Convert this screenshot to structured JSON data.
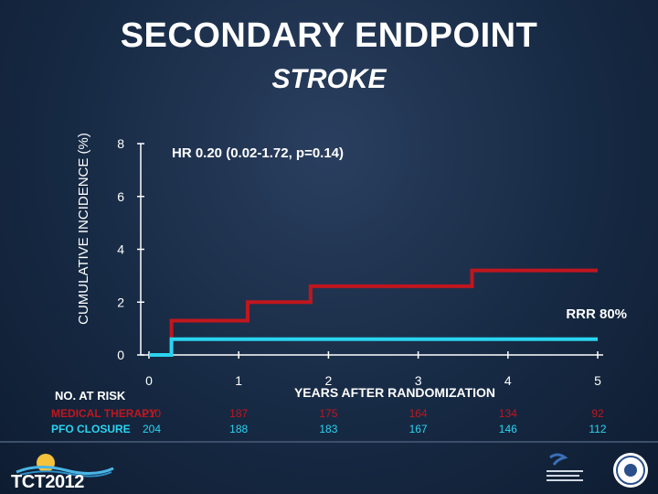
{
  "header": {
    "title": "SECONDARY ENDPOINT",
    "subtitle": "STROKE"
  },
  "chart_data": {
    "type": "line",
    "ylabel": "CUMULATIVE INCIDENCE (%)",
    "xlabel": "YEARS AFTER RANDOMIZATION",
    "xlim": [
      0,
      5
    ],
    "ylim": [
      0,
      8
    ],
    "x_ticks": [
      "0",
      "1",
      "2",
      "3",
      "4",
      "5"
    ],
    "y_ticks": [
      "0",
      "2",
      "4",
      "6",
      "8"
    ],
    "annotations": {
      "hr": "HR 0.20 (0.02-1.72, p=0.14)",
      "rrr": "RRR 80%"
    },
    "series": [
      {
        "name": "MEDICAL THERAPY",
        "color": "#c0161e",
        "steps": [
          [
            0,
            0
          ],
          [
            0.25,
            0
          ],
          [
            0.25,
            1.3
          ],
          [
            1.1,
            1.3
          ],
          [
            1.1,
            2.0
          ],
          [
            1.8,
            2.0
          ],
          [
            1.8,
            2.6
          ],
          [
            3.6,
            2.6
          ],
          [
            3.6,
            3.2
          ],
          [
            5.0,
            3.2
          ]
        ]
      },
      {
        "name": "PFO CLOSURE",
        "color": "#2ad4f0",
        "steps": [
          [
            0,
            0
          ],
          [
            0.25,
            0
          ],
          [
            0.25,
            0.6
          ],
          [
            5.0,
            0.6
          ]
        ]
      }
    ],
    "at_risk": {
      "heading": "NO. AT RISK",
      "rows": [
        {
          "label": "MEDICAL THERAPY",
          "color": "#c0161e",
          "values": [
            "210",
            "187",
            "175",
            "164",
            "134",
            "92"
          ]
        },
        {
          "label": "PFO CLOSURE",
          "color": "#2ad4f0",
          "values": [
            "204",
            "188",
            "183",
            "167",
            "146",
            "112"
          ]
        }
      ]
    }
  },
  "footer": {
    "left_logo_text": "TCT2012"
  }
}
